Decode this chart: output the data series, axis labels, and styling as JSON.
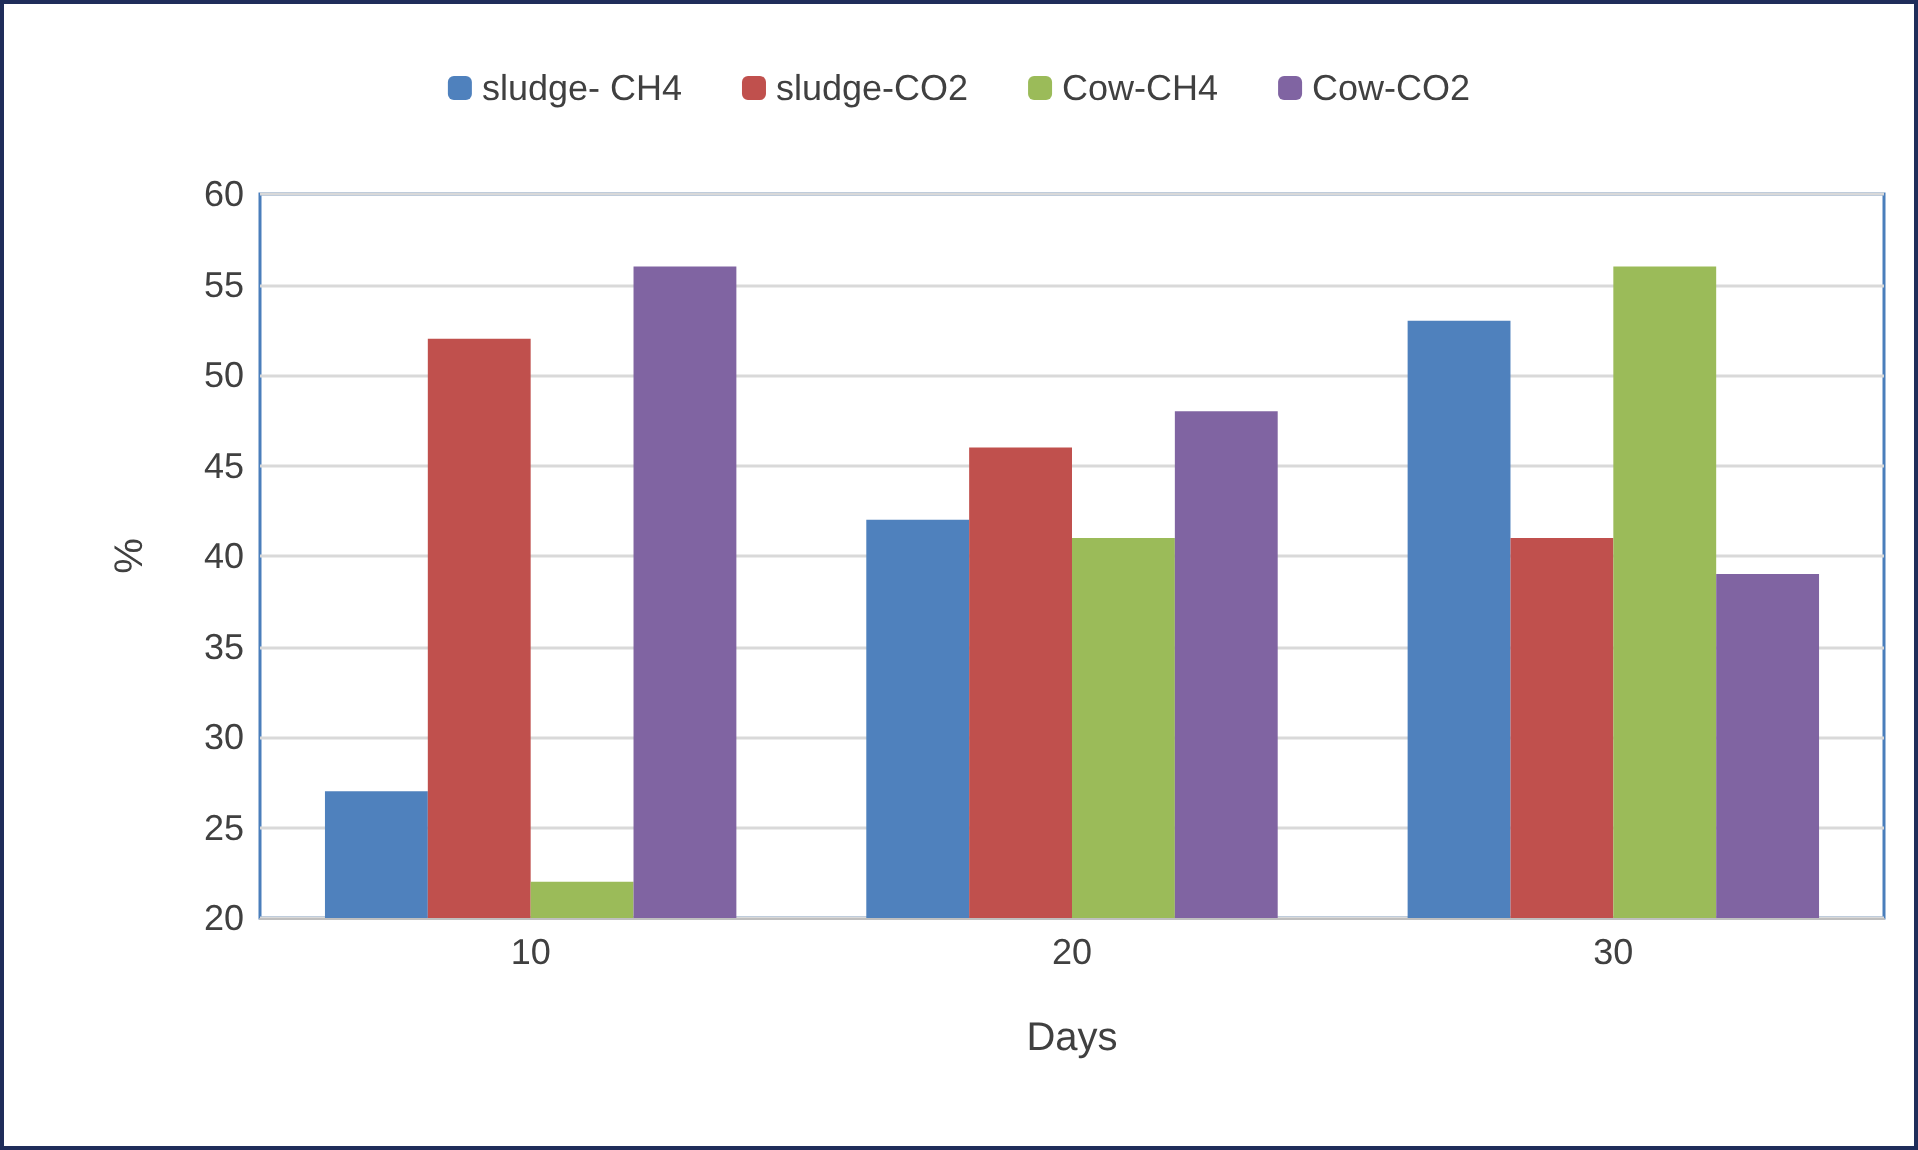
{
  "chart_data": {
    "type": "bar",
    "xlabel": "Days",
    "ylabel": "%",
    "categories": [
      "10",
      "20",
      "30"
    ],
    "series": [
      {
        "name": "sludge- CH4",
        "color": "#4f81bd",
        "values": [
          27,
          42,
          53
        ]
      },
      {
        "name": "sludge-CO2",
        "color": "#c0504d",
        "values": [
          52,
          46,
          41
        ]
      },
      {
        "name": "Cow-CH4",
        "color": "#9bbb59",
        "values": [
          22,
          41,
          56
        ]
      },
      {
        "name": "Cow-CO2",
        "color": "#8064a2",
        "values": [
          56,
          48,
          39
        ]
      }
    ],
    "ylim": [
      20,
      60
    ],
    "yticks": [
      20,
      25,
      30,
      35,
      40,
      45,
      50,
      55,
      60
    ],
    "grid": "y",
    "legend": "top"
  }
}
